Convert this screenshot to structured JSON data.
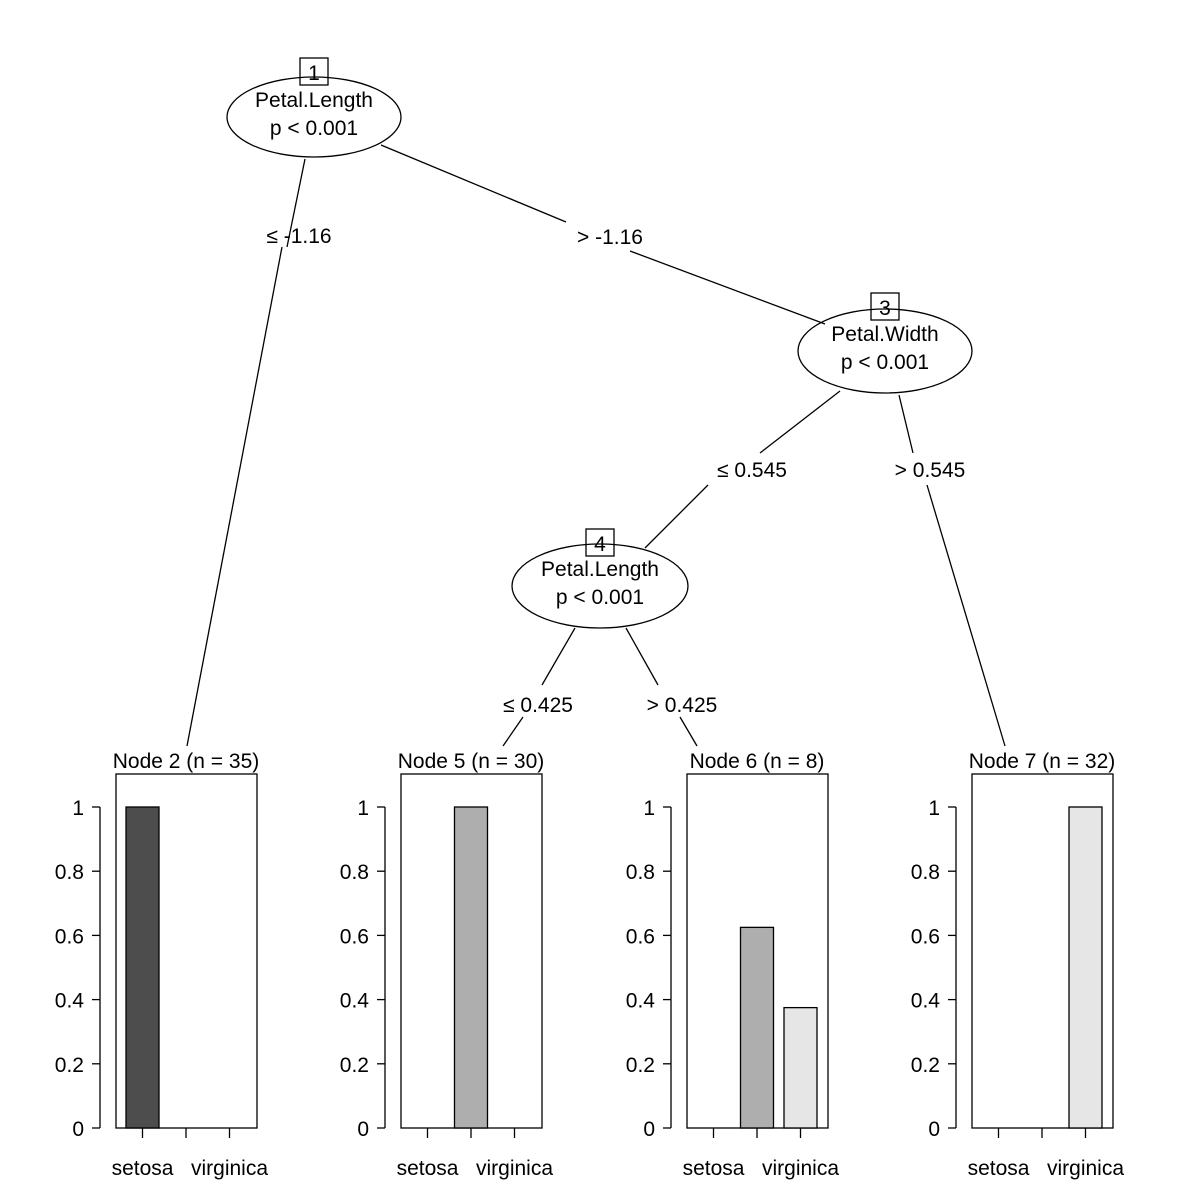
{
  "tree": {
    "inner_nodes": [
      {
        "id": "1",
        "variable": "Petal.Length",
        "pvalue": "p < 0.001"
      },
      {
        "id": "3",
        "variable": "Petal.Width",
        "pvalue": "p < 0.001"
      },
      {
        "id": "4",
        "variable": "Petal.Length",
        "pvalue": "p < 0.001"
      }
    ],
    "edges": [
      {
        "from": "1",
        "to": "2",
        "label": "≤ -1.16"
      },
      {
        "from": "1",
        "to": "3",
        "label": "> -1.16"
      },
      {
        "from": "3",
        "to": "4",
        "label": "≤ 0.545"
      },
      {
        "from": "3",
        "to": "7",
        "label": "> 0.545"
      },
      {
        "from": "4",
        "to": "5",
        "label": "≤ 0.425"
      },
      {
        "from": "4",
        "to": "6",
        "label": "> 0.425"
      }
    ],
    "leaf_nodes": [
      {
        "id": "2",
        "title": "Node 2 (n = 35)",
        "values": [
          1,
          0,
          0
        ]
      },
      {
        "id": "5",
        "title": "Node 5 (n = 30)",
        "values": [
          0,
          1,
          0
        ]
      },
      {
        "id": "6",
        "title": "Node 6 (n = 8)",
        "values": [
          0,
          0.625,
          0.375
        ]
      },
      {
        "id": "7",
        "title": "Node 7 (n = 32)",
        "values": [
          0,
          0,
          1
        ]
      }
    ],
    "class_labels": [
      "setosa",
      "virginica"
    ],
    "bar_colors": [
      "#4d4d4d",
      "#aeaeae",
      "#e6e6e6"
    ],
    "y_ticks": [
      "0",
      "0.2",
      "0.4",
      "0.6",
      "0.8",
      "1"
    ]
  }
}
